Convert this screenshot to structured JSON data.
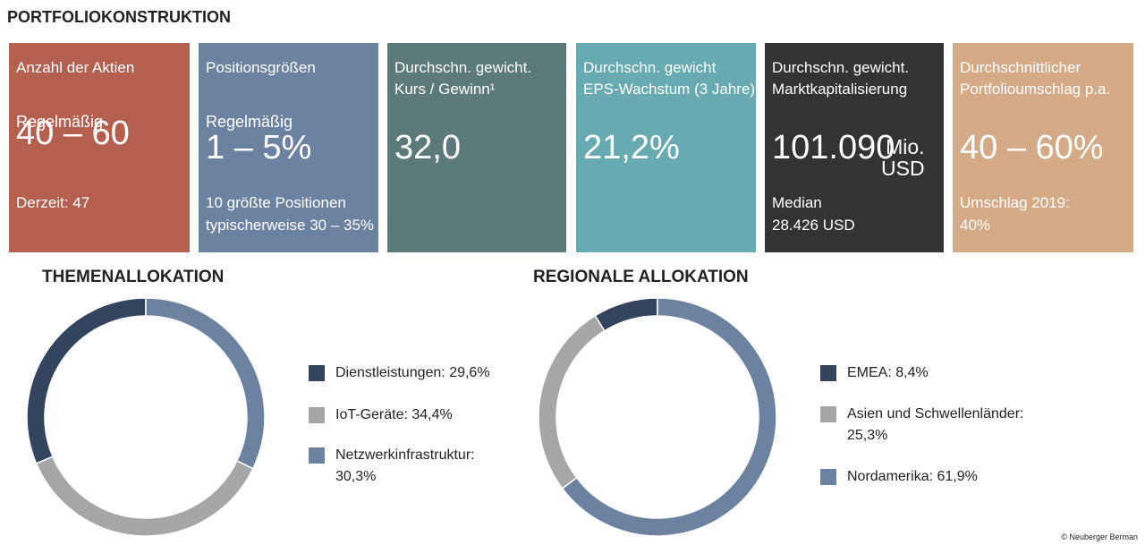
{
  "header": {
    "title": "PORTFOLIOKONSTRUKTION"
  },
  "cards": [
    {
      "label": [
        "Anzahl der Aktien"
      ],
      "sub": "Regelmäßig",
      "value": "40 – 60",
      "note": [
        "Derzeit: 47"
      ],
      "color": "#b5604f"
    },
    {
      "label": [
        "Positionsgrößen"
      ],
      "sub": "Regelmäßig",
      "value": "1 – 5%",
      "note": [
        "10 größte Positionen",
        "typischerweise 30 – 35%"
      ],
      "color": "#6b82a1"
    },
    {
      "label": [
        "Durchschn. gewicht.",
        "Kurs / Gewinn¹"
      ],
      "value": "32,0",
      "color": "#5d7a7a"
    },
    {
      "label": [
        "Durchschn. gewicht",
        "EPS-Wachstum (3 Jahre)"
      ],
      "value": "21,2%",
      "color": "#67aab2"
    },
    {
      "label": [
        "Durchschn. gewicht.",
        "Marktkapitalisierung"
      ],
      "value": "101.090",
      "unit": [
        "Mio.",
        "USD"
      ],
      "note": [
        "Median",
        "28.426 USD"
      ],
      "color": "#333333"
    },
    {
      "label": [
        "Durchschnittlicher",
        "Portfolioumschlag p.a."
      ],
      "value": "40 – 60%",
      "note": [
        "Umschlag 2019:",
        "40%"
      ],
      "color": "#d4aa87"
    }
  ],
  "chart_data": [
    {
      "type": "donut",
      "title": "THEMENALLOKATION",
      "categories": [
        "Dienstleistungen: 29,6%",
        "IoT-Geräte: 34,4%",
        "Netzwerkinfrastruktur: 30,3%"
      ],
      "values": [
        29.6,
        34.4,
        30.3
      ],
      "colors": [
        "#33445f",
        "#a6a6a6",
        "#6b82a1"
      ]
    },
    {
      "type": "donut",
      "title": "REGIONALE ALLOKATION",
      "categories": [
        "EMEA: 8,4%",
        "Asien und Schwellenländer: 25,3%",
        "Nordamerika: 61,9%"
      ],
      "values": [
        8.4,
        25.3,
        61.9
      ],
      "colors": [
        "#33445f",
        "#a6a6a6",
        "#6b82a1"
      ]
    }
  ],
  "footer": {
    "copyright": "© Neuberger Berman"
  }
}
